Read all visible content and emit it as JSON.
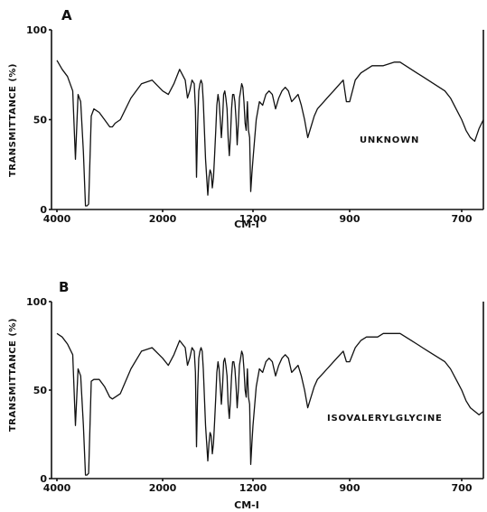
{
  "chart_data": [
    {
      "type": "line",
      "panel": "A",
      "annotation": "UNKNOWN",
      "xlabel": "CM-I",
      "ylabel": "TRANSMITTANCE (%)",
      "x_tick_labels": [
        "4000",
        "2000",
        "1200",
        "900",
        "700"
      ],
      "y_tick_labels": [
        "0",
        "50",
        "100"
      ],
      "ylim": [
        0,
        100
      ],
      "x_scale": "piecewise (4000-2000 compressed, 2000-650 expanded)",
      "grid": false,
      "series": [
        {
          "x": [
            4000,
            3900,
            3800,
            3700,
            3650,
            3600,
            3550,
            3500,
            3460,
            3430,
            3400,
            3350,
            3300,
            3200,
            3100,
            3000,
            2950,
            2900,
            2800,
            2600,
            2400,
            2200,
            2000,
            1950,
            1900,
            1850,
            1800,
            1780,
            1760,
            1740,
            1720,
            1710,
            1700,
            1690,
            1680,
            1670,
            1660,
            1650,
            1640,
            1620,
            1600,
            1590,
            1580,
            1570,
            1560,
            1550,
            1540,
            1530,
            1520,
            1510,
            1500,
            1490,
            1480,
            1470,
            1460,
            1450,
            1440,
            1430,
            1420,
            1410,
            1400,
            1390,
            1380,
            1370,
            1360,
            1350,
            1340,
            1330,
            1320,
            1310,
            1300,
            1290,
            1280,
            1270,
            1260,
            1250,
            1240,
            1230,
            1220,
            1210,
            1200,
            1190,
            1180,
            1170,
            1160,
            1150,
            1140,
            1130,
            1120,
            1110,
            1100,
            1090,
            1080,
            1070,
            1060,
            1050,
            1040,
            1030,
            1020,
            1010,
            1000,
            990,
            980,
            970,
            960,
            950,
            940,
            930,
            920,
            910,
            900,
            890,
            880,
            870,
            860,
            850,
            840,
            830,
            820,
            810,
            800,
            790,
            780,
            770,
            760,
            750,
            740,
            730,
            720,
            710,
            700,
            690,
            680,
            670,
            660,
            650
          ],
          "y": [
            83,
            78,
            74,
            66,
            28,
            64,
            60,
            32,
            2,
            2,
            3,
            52,
            56,
            54,
            50,
            46,
            46,
            48,
            50,
            62,
            70,
            72,
            66,
            64,
            70,
            78,
            72,
            62,
            66,
            72,
            70,
            56,
            18,
            48,
            66,
            70,
            72,
            70,
            60,
            28,
            8,
            18,
            22,
            20,
            12,
            18,
            30,
            44,
            58,
            64,
            60,
            50,
            40,
            50,
            64,
            66,
            62,
            56,
            40,
            30,
            40,
            56,
            64,
            64,
            60,
            50,
            36,
            48,
            62,
            66,
            70,
            68,
            60,
            48,
            44,
            60,
            44,
            40,
            10,
            20,
            28,
            50,
            60,
            58,
            64,
            66,
            64,
            56,
            62,
            66,
            68,
            66,
            60,
            62,
            64,
            58,
            50,
            40,
            46,
            52,
            56,
            58,
            60,
            62,
            64,
            66,
            68,
            70,
            72,
            60,
            60,
            72,
            76,
            78,
            80,
            80,
            80,
            81,
            82,
            82,
            80,
            78,
            76,
            74,
            72,
            70,
            68,
            66,
            62,
            56,
            50,
            44,
            40,
            38,
            45,
            50
          ]
        }
      ]
    },
    {
      "type": "line",
      "panel": "B",
      "annotation": "ISOVALERYLGLYCINE",
      "xlabel": "CM-I",
      "ylabel": "TRANSMITTANCE (%)",
      "x_tick_labels": [
        "4000",
        "2000",
        "1200",
        "900",
        "700"
      ],
      "y_tick_labels": [
        "0",
        "50",
        "100"
      ],
      "ylim": [
        0,
        100
      ],
      "x_scale": "piecewise (4000-2000 compressed, 2000-650 expanded)",
      "grid": false,
      "series": [
        {
          "x": [
            4000,
            3900,
            3800,
            3700,
            3650,
            3600,
            3550,
            3500,
            3460,
            3430,
            3400,
            3350,
            3300,
            3200,
            3100,
            3000,
            2950,
            2900,
            2800,
            2600,
            2400,
            2200,
            2000,
            1950,
            1900,
            1850,
            1800,
            1780,
            1760,
            1740,
            1720,
            1710,
            1700,
            1690,
            1680,
            1670,
            1660,
            1650,
            1640,
            1620,
            1600,
            1590,
            1580,
            1570,
            1560,
            1550,
            1540,
            1530,
            1520,
            1510,
            1500,
            1490,
            1480,
            1470,
            1460,
            1450,
            1440,
            1430,
            1420,
            1410,
            1400,
            1390,
            1380,
            1370,
            1360,
            1350,
            1340,
            1330,
            1320,
            1310,
            1300,
            1290,
            1280,
            1270,
            1260,
            1250,
            1240,
            1230,
            1220,
            1210,
            1200,
            1190,
            1180,
            1170,
            1160,
            1150,
            1140,
            1130,
            1120,
            1110,
            1100,
            1090,
            1080,
            1070,
            1060,
            1050,
            1040,
            1030,
            1020,
            1010,
            1000,
            990,
            980,
            970,
            960,
            950,
            940,
            930,
            920,
            910,
            900,
            890,
            880,
            870,
            860,
            850,
            840,
            830,
            820,
            810,
            800,
            790,
            780,
            770,
            760,
            750,
            740,
            730,
            720,
            710,
            700,
            690,
            680,
            670,
            660,
            650
          ],
          "y": [
            82,
            80,
            76,
            70,
            30,
            62,
            58,
            30,
            2,
            2,
            3,
            55,
            56,
            56,
            52,
            46,
            45,
            46,
            48,
            62,
            72,
            74,
            68,
            64,
            70,
            78,
            74,
            64,
            68,
            74,
            72,
            60,
            18,
            50,
            68,
            72,
            74,
            72,
            62,
            30,
            10,
            20,
            26,
            24,
            14,
            20,
            32,
            46,
            60,
            66,
            62,
            52,
            42,
            52,
            66,
            68,
            64,
            58,
            42,
            34,
            44,
            58,
            66,
            66,
            62,
            52,
            40,
            50,
            64,
            68,
            72,
            70,
            62,
            50,
            46,
            62,
            46,
            42,
            8,
            20,
            30,
            52,
            62,
            60,
            66,
            68,
            66,
            58,
            64,
            68,
            70,
            68,
            60,
            62,
            64,
            58,
            50,
            40,
            46,
            52,
            56,
            58,
            60,
            62,
            64,
            66,
            68,
            70,
            72,
            66,
            66,
            74,
            78,
            80,
            80,
            80,
            82,
            82,
            82,
            82,
            80,
            78,
            76,
            74,
            72,
            70,
            68,
            66,
            62,
            56,
            50,
            44,
            40,
            38,
            36,
            38
          ]
        }
      ]
    }
  ]
}
